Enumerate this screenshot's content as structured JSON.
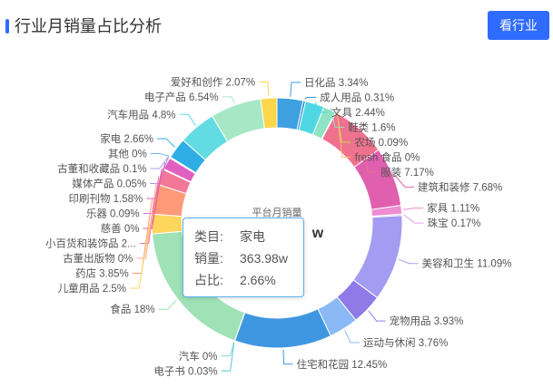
{
  "header": {
    "title": "行业月销量占比分析",
    "button_label": "看行业",
    "accent": "#2f6bff"
  },
  "chart_data": {
    "type": "pie",
    "variant": "donut",
    "center_title": "平台月销量",
    "center_value_visible": "w",
    "slices": [
      {
        "name": "日化品",
        "percent": 3.34,
        "label": "日化品  3.34%",
        "color": "#3ea0e0"
      },
      {
        "name": "成人用品",
        "percent": 0.31,
        "label": "成人用品  0.31%",
        "color": "#2d8fd0"
      },
      {
        "name": "文具",
        "percent": 2.44,
        "label": "文具  2.44%",
        "color": "#4fd8e4"
      },
      {
        "name": "鞋类",
        "percent": 1.6,
        "label": "鞋类  1.6%",
        "color": "#8ee3c4"
      },
      {
        "name": "农场",
        "percent": 0.09,
        "label": "农场  0.09%",
        "color": "#c9d94e"
      },
      {
        "name": "fresh 食品",
        "percent": 0,
        "label": "fresh 食品  0%",
        "color": "#ffb67a"
      },
      {
        "name": "服装",
        "percent": 7.17,
        "label": "服装  7.17%",
        "color": "#f0718e"
      },
      {
        "name": "建筑和装修",
        "percent": 7.68,
        "label": "建筑和装修  7.68%",
        "color": "#e05fae"
      },
      {
        "name": "家具",
        "percent": 1.11,
        "label": "家具  1.11%",
        "color": "#ef8cd2"
      },
      {
        "name": "珠宝",
        "percent": 0.17,
        "label": "珠宝  0.17%",
        "color": "#d9a0f0"
      },
      {
        "name": "美容和卫生",
        "percent": 11.09,
        "label": "美容和卫生  11.09%",
        "color": "#a39cf2"
      },
      {
        "name": "宠物用品",
        "percent": 3.93,
        "label": "宠物用品  3.93%",
        "color": "#8f7ae8"
      },
      {
        "name": "运动与休闲",
        "percent": 3.76,
        "label": "运动与休闲  3.76%",
        "color": "#8ab9f5"
      },
      {
        "name": "住宅和花园",
        "percent": 12.45,
        "label": "住宅和花园  12.45%",
        "color": "#3f96e0"
      },
      {
        "name": "电子书",
        "percent": 0.03,
        "label": "电子书  0.03%",
        "color": "#56c6e6"
      },
      {
        "name": "汽车",
        "percent": 0,
        "label": "汽车  0%",
        "color": "#7fd8d0"
      },
      {
        "name": "食品",
        "percent": 18,
        "label": "食品  18%",
        "color": "#9ee2b6"
      },
      {
        "name": "儿童用品",
        "percent": 2.5,
        "label": "儿童用品  2.5%",
        "color": "#ffd65c"
      },
      {
        "name": "药店",
        "percent": 3.85,
        "label": "药店  3.85%",
        "color": "#ff9a78"
      },
      {
        "name": "古董出版物",
        "percent": 0,
        "label": "古董出版物  0%",
        "color": "#f7a5a5"
      },
      {
        "name": "小百货和装饰品",
        "percent": 2,
        "label": "小百货和装饰品  2...",
        "color": "#f2789a"
      },
      {
        "name": "慈善",
        "percent": 0,
        "label": "慈善  0%",
        "color": "#e85f8a"
      },
      {
        "name": "乐器",
        "percent": 0.09,
        "label": "乐器  0.09%",
        "color": "#d96ad9"
      },
      {
        "name": "印刷刊物",
        "percent": 1.58,
        "label": "印刷刊物  1.58%",
        "color": "#e060c0"
      },
      {
        "name": "媒体产品",
        "percent": 0.05,
        "label": "媒体产品  0.05%",
        "color": "#b48ee8"
      },
      {
        "name": "古董和收藏品",
        "percent": 0.1,
        "label": "古董和收藏品  0.1%",
        "color": "#a0a8f0"
      },
      {
        "name": "其他",
        "percent": 0,
        "label": "其他  0%",
        "color": "#6fb3ee"
      },
      {
        "name": "家电",
        "percent": 2.66,
        "label": "家电  2.66%",
        "color": "#2eaee4"
      },
      {
        "name": "汽车用品",
        "percent": 4.8,
        "label": "汽车用品  4.8%",
        "color": "#62dbe2"
      },
      {
        "name": "电子产品",
        "percent": 6.54,
        "label": "电子产品  6.54%",
        "color": "#a6e8c6"
      },
      {
        "name": "爱好和创作",
        "percent": 2.07,
        "label": "爱好和创作  2.07%",
        "color": "#ffd54a"
      }
    ]
  },
  "tooltip": {
    "category_label": "类目:",
    "category_value": "家电",
    "sales_label": "销量:",
    "sales_value": "363.98w",
    "share_label": "占比:",
    "share_value": "2.66%"
  }
}
